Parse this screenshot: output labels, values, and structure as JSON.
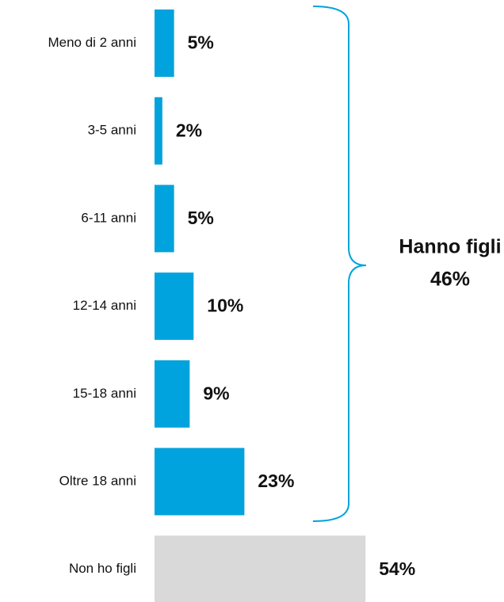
{
  "chart_data": {
    "type": "bar",
    "orientation": "horizontal",
    "categories": [
      "Meno di 2 anni",
      "3-5 anni",
      "6-11 anni",
      "12-14 anni",
      "15-18 anni",
      "Oltre 18 anni",
      "Non ho figli"
    ],
    "values": [
      5,
      2,
      5,
      10,
      9,
      23,
      54
    ],
    "value_labels": [
      "5%",
      "2%",
      "5%",
      "10%",
      "9%",
      "23%",
      "54%"
    ],
    "colors": [
      "#00a3dd",
      "#00a3dd",
      "#00a3dd",
      "#00a3dd",
      "#00a3dd",
      "#00a3dd",
      "#d9d9d9"
    ],
    "annotation": {
      "text": "Hanno figli",
      "value_label": "46%"
    }
  }
}
